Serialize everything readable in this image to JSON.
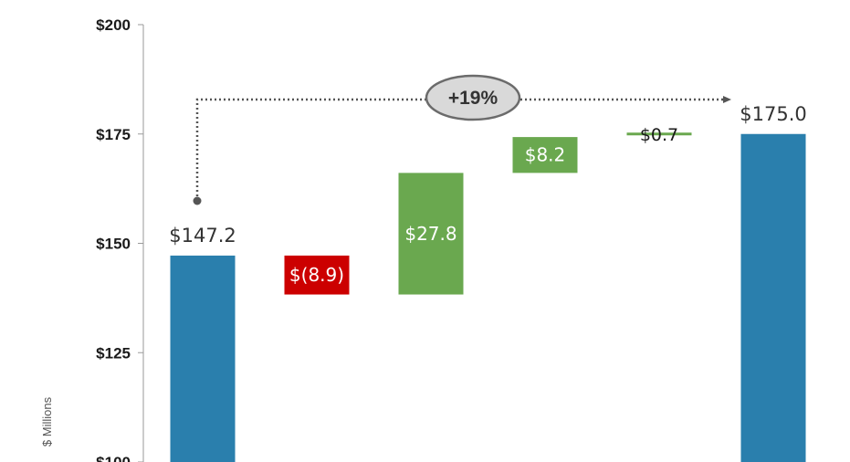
{
  "chart_data": {
    "type": "waterfall",
    "ylabel": "$ Millions",
    "ylim": [
      100,
      200
    ],
    "yticks": [
      100,
      125,
      150,
      175,
      200
    ],
    "ytick_labels": [
      "$100",
      "$125",
      "$150",
      "$175",
      "$200"
    ],
    "bars": [
      {
        "kind": "total",
        "start": 0,
        "end": 147.2,
        "label": "$147.2",
        "label_pos": "above",
        "color": "#2a7fad"
      },
      {
        "kind": "decrease",
        "start": 147.2,
        "end": 138.3,
        "label": "$(8.9)",
        "label_pos": "inside",
        "color": "#cc0000"
      },
      {
        "kind": "increase",
        "start": 138.3,
        "end": 166.1,
        "label": "$27.8",
        "label_pos": "inside",
        "color": "#6aa84f"
      },
      {
        "kind": "increase",
        "start": 166.1,
        "end": 174.3,
        "label": "$8.2",
        "label_pos": "inside",
        "color": "#6aa84f"
      },
      {
        "kind": "increase",
        "start": 174.3,
        "end": 175.0,
        "label": "$0.7",
        "label_pos": "strike",
        "color": "#6aa84f"
      },
      {
        "kind": "total",
        "start": 0,
        "end": 175.0,
        "label": "$175.0",
        "label_pos": "above",
        "color": "#2a7fad"
      }
    ],
    "growth_annotation": {
      "label": "+19%",
      "from_bar": 0,
      "to_bar": 5
    }
  }
}
